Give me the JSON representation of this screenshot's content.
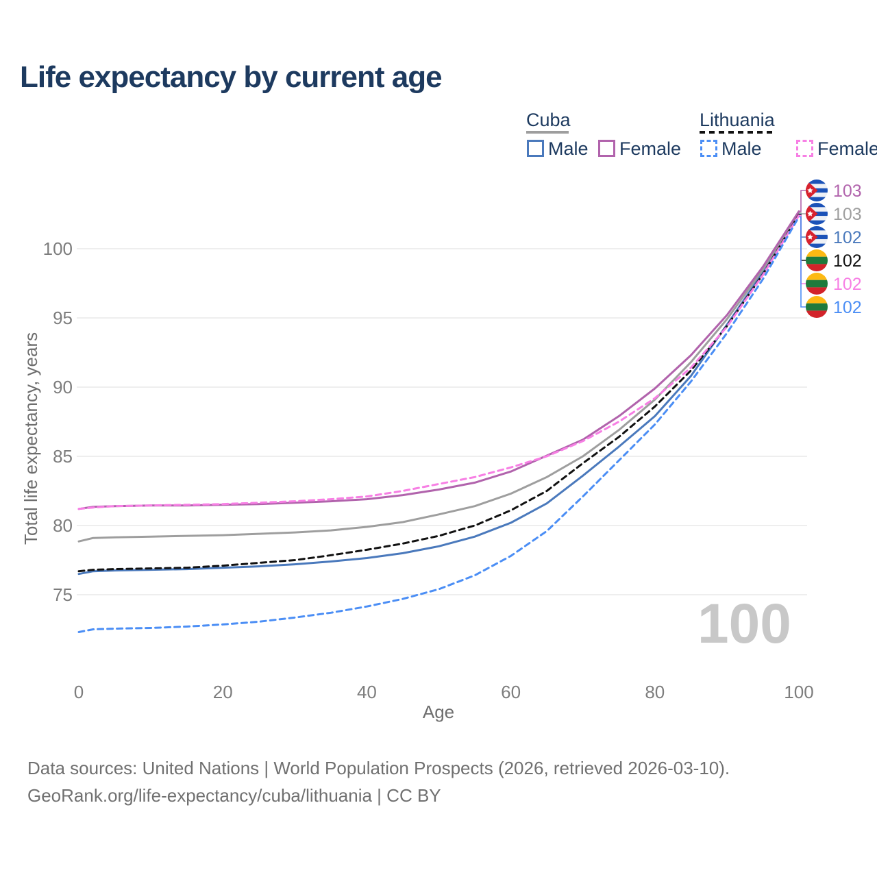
{
  "title": "Life expectancy by current age",
  "watermark": "100",
  "legend": {
    "groups": [
      {
        "label": "Cuba",
        "line_style": "solid",
        "items": [
          {
            "label": "Male",
            "color": "#4a79bc",
            "dashed": false
          },
          {
            "label": "Female",
            "color": "#b163ac",
            "dashed": false
          }
        ]
      },
      {
        "label": "Lithuania",
        "line_style": "dashed",
        "items": [
          {
            "label": "Male",
            "color": "#4b8ef5",
            "dashed": true
          },
          {
            "label": "Female",
            "color": "#f77fe4",
            "dashed": true
          }
        ]
      }
    ]
  },
  "footer": {
    "line1": "Data sources: United Nations | World Population Prospects (2026, retrieved 2026-03-10).",
    "line2": "GeoRank.org/life-expectancy/cuba/lithuania | CC BY"
  },
  "chart_data": {
    "type": "line",
    "title": "Life expectancy by current age",
    "xlabel": "Age",
    "ylabel": "Total life expectancy, years",
    "xlim": [
      0,
      100
    ],
    "ylim": [
      72,
      103
    ],
    "xticks": [
      0,
      20,
      40,
      60,
      80,
      100
    ],
    "yticks": [
      75,
      80,
      85,
      90,
      95,
      100
    ],
    "grid": "horizontal-only",
    "x": [
      0,
      2,
      5,
      10,
      15,
      20,
      25,
      30,
      35,
      40,
      45,
      50,
      55,
      60,
      65,
      70,
      75,
      80,
      85,
      90,
      95,
      100
    ],
    "series": [
      {
        "name": "Cuba Male",
        "country": "Cuba",
        "sex": "male",
        "color": "#4a79bc",
        "dash": "solid",
        "values": [
          76.5,
          76.7,
          76.75,
          76.8,
          76.85,
          76.95,
          77.05,
          77.2,
          77.4,
          77.65,
          78.0,
          78.5,
          79.2,
          80.2,
          81.6,
          83.6,
          85.7,
          87.9,
          90.8,
          94.5,
          98.3,
          102.5
        ]
      },
      {
        "name": "Cuba",
        "country": "Cuba",
        "sex": "both",
        "color": "#9e9e9e",
        "dash": "solid",
        "values": [
          78.85,
          79.1,
          79.15,
          79.2,
          79.25,
          79.3,
          79.4,
          79.5,
          79.65,
          79.9,
          80.25,
          80.8,
          81.4,
          82.3,
          83.5,
          85.0,
          86.9,
          89.1,
          91.8,
          94.9,
          98.5,
          102.6
        ]
      },
      {
        "name": "Cuba Female",
        "country": "Cuba",
        "sex": "female",
        "color": "#b163ac",
        "dash": "solid",
        "values": [
          81.2,
          81.35,
          81.4,
          81.45,
          81.45,
          81.5,
          81.55,
          81.65,
          81.75,
          81.9,
          82.2,
          82.6,
          83.1,
          83.9,
          85.05,
          86.2,
          87.9,
          89.9,
          92.3,
          95.2,
          98.7,
          102.7
        ]
      },
      {
        "name": "Lithuania",
        "country": "Lithuania",
        "sex": "both",
        "color": "#111111",
        "dash": "dashed",
        "values": [
          76.7,
          76.8,
          76.85,
          76.9,
          76.95,
          77.1,
          77.3,
          77.5,
          77.85,
          78.25,
          78.7,
          79.25,
          80.0,
          81.1,
          82.5,
          84.5,
          86.4,
          88.6,
          91.2,
          94.4,
          98.15,
          102.45
        ]
      },
      {
        "name": "Lithuania Female",
        "country": "Lithuania",
        "sex": "female",
        "color": "#f77fe4",
        "dash": "dashed",
        "values": [
          81.2,
          81.3,
          81.4,
          81.45,
          81.5,
          81.55,
          81.65,
          81.75,
          81.9,
          82.1,
          82.5,
          83.0,
          83.5,
          84.2,
          85.0,
          86.1,
          87.5,
          89.2,
          91.4,
          94.35,
          98.1,
          102.4
        ]
      },
      {
        "name": "Lithuania Male",
        "country": "Lithuania",
        "sex": "male",
        "color": "#4b8ef5",
        "dash": "dashed",
        "values": [
          72.3,
          72.5,
          72.55,
          72.6,
          72.7,
          72.85,
          73.05,
          73.35,
          73.7,
          74.15,
          74.7,
          75.4,
          76.4,
          77.8,
          79.6,
          82.1,
          84.7,
          87.3,
          90.4,
          93.9,
          97.8,
          102.3
        ]
      }
    ],
    "end_labels": [
      {
        "series": "Cuba Female",
        "flag": "cuba",
        "value": "103",
        "color": "#b163ac"
      },
      {
        "series": "Cuba",
        "flag": "cuba",
        "value": "103",
        "color": "#9e9e9e"
      },
      {
        "series": "Cuba Male",
        "flag": "cuba",
        "value": "102",
        "color": "#4a79bc"
      },
      {
        "series": "Lithuania",
        "flag": "lithuania",
        "value": "102",
        "color": "#111111"
      },
      {
        "series": "Lithuania Female",
        "flag": "lithuania",
        "value": "102",
        "color": "#f77fe4"
      },
      {
        "series": "Lithuania Male",
        "flag": "lithuania",
        "value": "102",
        "color": "#4b8ef5"
      }
    ]
  }
}
